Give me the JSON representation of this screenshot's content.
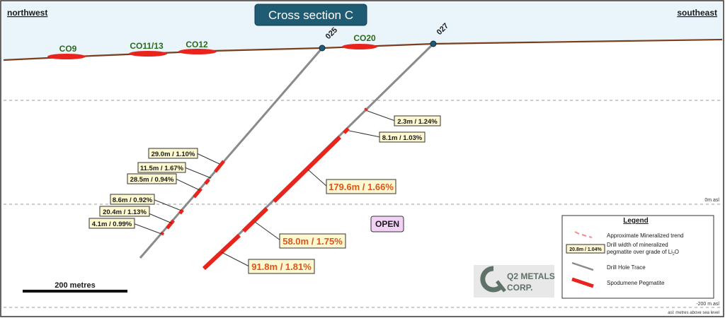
{
  "title": "Cross section C",
  "directions": {
    "left": "northwest",
    "right": "southeast"
  },
  "zones": [
    "CO9",
    "CO11/13",
    "CO12",
    "CO20"
  ],
  "holes": [
    "025",
    "027"
  ],
  "elevations": {
    "zero": "0m asl",
    "minus200": "-200 m asl",
    "note": "asl: metres above sea level"
  },
  "scale_bar": "200 metres",
  "open_label": "OPEN",
  "intercepts": {
    "h025": [
      "29.0m / 1.10%",
      "11.5m / 1.67%",
      "28.5m / 0.94%",
      "8.6m / 0.92%",
      "20.4m / 1.13%",
      "4.1m / 0.99%"
    ],
    "h027": [
      "2.3m / 1.24%",
      "8.1m / 1.03%",
      "179.6m / 1.66%",
      "58.0m / 1.75%",
      "91.8m / 1.81%"
    ]
  },
  "legend": {
    "title": "Legend",
    "items": [
      "Approximate Mineralized trend",
      "Drill width of mineralized",
      "pegmatite over grade of Li",
      "O",
      "Drill Hole Trace",
      "Spodumene Pegmatite"
    ],
    "sample_box": "20.8m / 1.04%",
    "sub_2": "2"
  },
  "logo": {
    "line1": "Q2 METALS",
    "line2": "CORP."
  },
  "colors": {
    "sky": "#eaf5fb",
    "title_bg": "#1f5b73",
    "pegmatite": "#e8241d",
    "drill": "#8a8a8a",
    "label_bg": "#fdf8d0",
    "ground": "#7a3e1e",
    "zone_text": "#2a6b1a"
  }
}
